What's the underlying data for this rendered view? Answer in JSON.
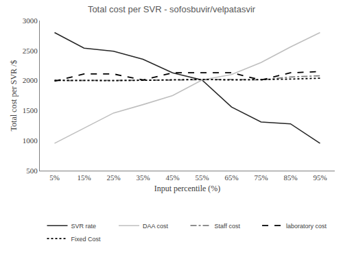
{
  "chart_data": {
    "type": "line",
    "title": "Total cost per SVR - sofosbuvir/velpatasvir",
    "x_label": "Input percentile (%)",
    "y_label": "Total cost per SVR /$",
    "categories": [
      "5%",
      "15%",
      "25%",
      "35%",
      "45%",
      "55%",
      "65%",
      "75%",
      "85%",
      "95%"
    ],
    "series": [
      {
        "name": "SVR rate",
        "color": "#262626",
        "line_style": "solid",
        "values": [
          2800,
          2540,
          2490,
          2355,
          2130,
          2010,
          1560,
          1310,
          1280,
          955
        ]
      },
      {
        "name": "DAA cost",
        "color": "#bfbfbf",
        "line_style": "solid",
        "values": [
          955,
          1210,
          1460,
          1600,
          1750,
          2010,
          2100,
          2300,
          2560,
          2800
        ]
      },
      {
        "name": "Staff cost",
        "color": "#7f7f7f",
        "line_style": "dashdot",
        "values": [
          2000,
          2000,
          2000,
          2005,
          2010,
          2015,
          2020,
          2010,
          2060,
          2080
        ]
      },
      {
        "name": "laboratory cost",
        "color": "#000000",
        "line_style": "dash",
        "values": [
          1990,
          2110,
          2110,
          2010,
          2130,
          2130,
          2130,
          2010,
          2130,
          2150
        ]
      },
      {
        "name": "Fixed Cost",
        "color": "#000000",
        "line_style": "dot",
        "values": [
          2005,
          2000,
          2000,
          2005,
          2010,
          2020,
          2010,
          2015,
          2025,
          2040
        ]
      }
    ],
    "ylim": [
      500,
      3000
    ],
    "yticks": [
      500,
      1000,
      1500,
      2000,
      2500,
      3000
    ],
    "grid": false,
    "legend": "bottom"
  }
}
